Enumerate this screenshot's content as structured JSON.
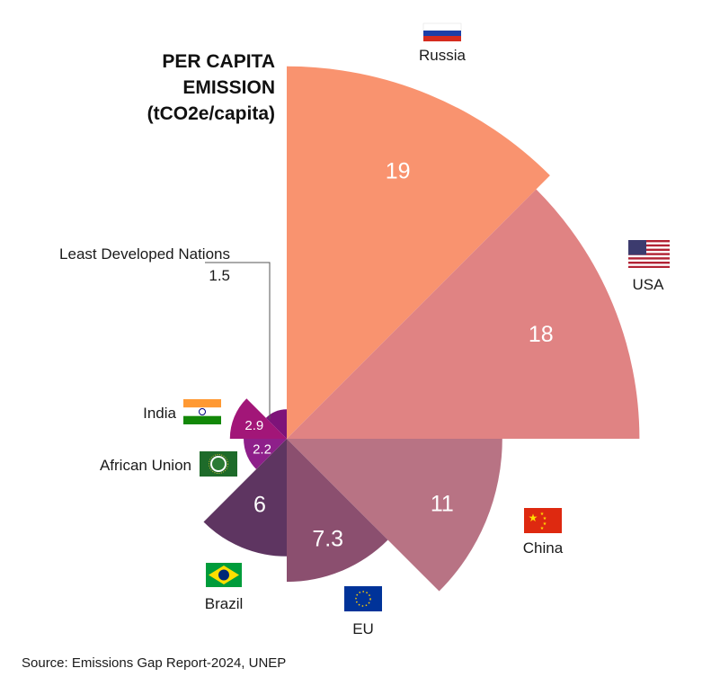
{
  "chart_data": {
    "type": "polar-area",
    "title_lines": [
      "PER CAPITA",
      "EMISSION",
      "(tCO2e/capita)"
    ],
    "source": "Source: Emissions Gap Report-2024, UNEP",
    "series": [
      {
        "name": "Russia",
        "value": 19,
        "color": "#F9936F",
        "flag": "russia-flag"
      },
      {
        "name": "USA",
        "value": 18,
        "color": "#E08383",
        "flag": "usa-flag"
      },
      {
        "name": "China",
        "value": 11,
        "color": "#B87384",
        "flag": "china-flag"
      },
      {
        "name": "EU",
        "value": 7.3,
        "color": "#8B4F6F",
        "flag": "eu-flag"
      },
      {
        "name": "Brazil",
        "value": 6,
        "color": "#5E3561",
        "flag": "brazil-flag"
      },
      {
        "name": "African Union",
        "value": 2.2,
        "color": "#8E1F8A",
        "flag": "african-union-flag"
      },
      {
        "name": "India",
        "value": 2.9,
        "color": "#A21678",
        "flag": "india-flag"
      },
      {
        "name": "Least Developed Nations",
        "value": 1.5,
        "color": "#7E1379",
        "flag": ""
      }
    ],
    "callout": {
      "label": "Least Developed Nations",
      "value": "1.5"
    }
  }
}
